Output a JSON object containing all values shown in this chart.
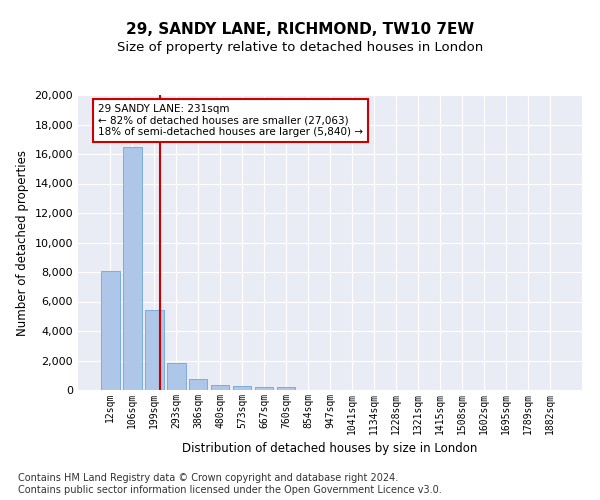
{
  "title": "29, SANDY LANE, RICHMOND, TW10 7EW",
  "subtitle": "Size of property relative to detached houses in London",
  "xlabel": "Distribution of detached houses by size in London",
  "ylabel": "Number of detached properties",
  "categories": [
    "12sqm",
    "106sqm",
    "199sqm",
    "293sqm",
    "386sqm",
    "480sqm",
    "573sqm",
    "667sqm",
    "760sqm",
    "854sqm",
    "947sqm",
    "1041sqm",
    "1134sqm",
    "1228sqm",
    "1321sqm",
    "1415sqm",
    "1508sqm",
    "1602sqm",
    "1695sqm",
    "1789sqm",
    "1882sqm"
  ],
  "values": [
    8100,
    16500,
    5400,
    1850,
    750,
    350,
    275,
    225,
    180,
    0,
    0,
    0,
    0,
    0,
    0,
    0,
    0,
    0,
    0,
    0,
    0
  ],
  "bar_color": "#aec6e8",
  "bar_edge_color": "#5b9bd5",
  "vline_x": 2.25,
  "vline_color": "#cc0000",
  "annotation_text": "29 SANDY LANE: 231sqm\n← 82% of detached houses are smaller (27,063)\n18% of semi-detached houses are larger (5,840) →",
  "annotation_box_color": "#ffffff",
  "annotation_box_edge": "#cc0000",
  "ylim": [
    0,
    20000
  ],
  "yticks": [
    0,
    2000,
    4000,
    6000,
    8000,
    10000,
    12000,
    14000,
    16000,
    18000,
    20000
  ],
  "footer": "Contains HM Land Registry data © Crown copyright and database right 2024.\nContains public sector information licensed under the Open Government Licence v3.0.",
  "bg_color": "#eaecf5",
  "title_fontsize": 11,
  "subtitle_fontsize": 9.5,
  "axis_label_fontsize": 8.5,
  "tick_fontsize": 7,
  "footer_fontsize": 7
}
